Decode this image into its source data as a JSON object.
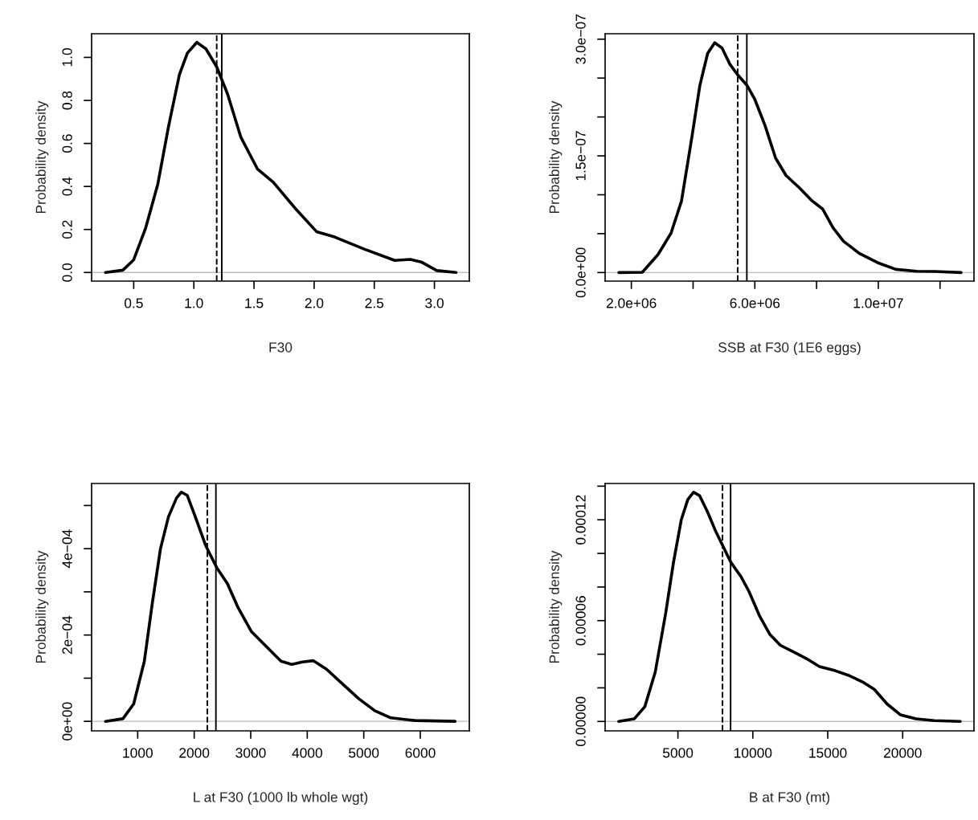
{
  "chart_data": [
    {
      "type": "line",
      "xlabel": "F30",
      "ylabel": "Probability density",
      "grid": false,
      "line_style": "solid",
      "x": [
        0.266,
        0.41,
        0.5,
        0.6,
        0.7,
        0.79,
        0.88,
        0.946,
        1.025,
        1.1,
        1.19,
        1.28,
        1.39,
        1.53,
        1.66,
        1.84,
        2.02,
        2.17,
        2.42,
        2.67,
        2.8,
        2.89,
        3.02,
        3.18
      ],
      "series": [
        {
          "color": "#000000",
          "values": [
            0,
            0.011,
            0.059,
            0.208,
            0.41,
            0.68,
            0.92,
            1.02,
            1.07,
            1.04,
            0.956,
            0.83,
            0.63,
            0.48,
            0.42,
            0.3,
            0.19,
            0.165,
            0.108,
            0.056,
            0.061,
            0.049,
            0.009,
            0
          ]
        }
      ],
      "xlim": [
        0.15,
        3.29
      ],
      "ylim": [
        -0.04,
        1.11
      ],
      "xticks": [
        {
          "value": 0.5,
          "label": "0.5"
        },
        {
          "value": 1.0,
          "label": "1.0"
        },
        {
          "value": 1.5,
          "label": "1.5"
        },
        {
          "value": 2.0,
          "label": "2.0"
        },
        {
          "value": 2.5,
          "label": "2.5"
        },
        {
          "value": 3.0,
          "label": "3.0"
        }
      ],
      "yticks": [
        {
          "value": 0,
          "label": "0.0"
        },
        {
          "value": 0.2,
          "label": "0.2"
        },
        {
          "value": 0.4,
          "label": "0.4"
        },
        {
          "value": 0.6,
          "label": "0.6"
        },
        {
          "value": 0.8,
          "label": "0.8"
        },
        {
          "value": 1.0,
          "label": "1.0"
        }
      ],
      "ref_lines": [
        {
          "axis": "y",
          "value": 0,
          "color": "#bebebe",
          "line_style": "solid"
        },
        {
          "axis": "x",
          "value": 1.19,
          "color": "#000000",
          "line_style": "dashed"
        },
        {
          "axis": "x",
          "value": 1.232,
          "color": "#000000",
          "line_style": "solid"
        }
      ]
    },
    {
      "type": "line",
      "xlabel": "SSB at F30 (1E6 eggs)",
      "ylabel": "Probability density",
      "grid": false,
      "line_style": "solid",
      "x": [
        1594000.0,
        2355000.0,
        2863000.0,
        3286000.0,
        3625000.0,
        3964000.0,
        4218000.0,
        4471000.0,
        4700000.0,
        4937000.0,
        5191000.0,
        5445000.0,
        5741000.0,
        5995000.0,
        6334000.0,
        6672000.0,
        7011000.0,
        7434000.0,
        7857000.0,
        8196000.0,
        8534000.0,
        8873000.0,
        9381000.0,
        9973000.0,
        10566000.0,
        11243000.0,
        11835000.0,
        12682000.0
      ],
      "series": [
        {
          "color": "#000000",
          "values": [
            0,
            4.1e-10,
            2.31e-08,
            5.07e-08,
            9.21e-08,
            1.748e-07,
            2.403e-07,
            2.817e-07,
            2.955e-07,
            2.886e-07,
            2.679e-07,
            2.541e-07,
            2.41e-07,
            2.231e-07,
            1.886e-07,
            1.472e-07,
            1.248e-07,
            1.093e-07,
            9.21e-08,
            8.17e-08,
            5.76e-08,
            4.03e-08,
            2.48e-08,
            1.28e-08,
            4.1e-09,
            1.7e-09,
            1.4e-09,
            0
          ]
        }
      ],
      "xlim": [
        1150000.0,
        13100000.0
      ],
      "ylim": [
        -1.1e-08,
        3.07e-07
      ],
      "xticks": [
        {
          "value": 2000000.0,
          "label": "2.0e+06"
        },
        {
          "value": 4000000.0,
          "label": null
        },
        {
          "value": 6000000.0,
          "label": "6.0e+06"
        },
        {
          "value": 8000000.0,
          "label": null
        },
        {
          "value": 10000000.0,
          "label": "1.0e+07"
        },
        {
          "value": 12000000.0,
          "label": null
        }
      ],
      "yticks": [
        {
          "value": 0,
          "label": "0.0e+00"
        },
        {
          "value": 5e-08,
          "label": null
        },
        {
          "value": 1e-07,
          "label": null
        },
        {
          "value": 1.5e-07,
          "label": "1.5e−07"
        },
        {
          "value": 2e-07,
          "label": null
        },
        {
          "value": 2.5e-07,
          "label": null
        },
        {
          "value": 3e-07,
          "label": "3.0e−07"
        }
      ],
      "ref_lines": [
        {
          "axis": "y",
          "value": 0,
          "color": "#bebebe",
          "line_style": "solid"
        },
        {
          "axis": "x",
          "value": 5445000.0,
          "color": "#000000",
          "line_style": "dashed"
        },
        {
          "axis": "x",
          "value": 5741000.0,
          "color": "#000000",
          "line_style": "solid"
        }
      ]
    },
    {
      "type": "line",
      "xlabel": "L at F30 (1000 lb whole wgt)",
      "ylabel": "Probability density",
      "grid": false,
      "line_style": "solid",
      "x": [
        431,
        739,
        929,
        1118,
        1261,
        1403,
        1545,
        1687,
        1772,
        1877,
        2019,
        2208,
        2398,
        2588,
        2777,
        3014,
        3298,
        3535,
        3725,
        3915,
        4104,
        4341,
        4625,
        4910,
        5194,
        5478,
        5905,
        6616
      ],
      "series": [
        {
          "color": "#000000",
          "values": [
            0,
            6.2e-06,
            4.03e-05,
            0.0001394,
            0.0002757,
            0.0003996,
            0.000474,
            0.0005173,
            0.000531,
            0.0005235,
            0.000474,
            0.0004058,
            0.0003563,
            0.0003191,
            0.0002633,
            0.0002076,
            0.0001704,
            0.0001394,
            0.000132,
            0.0001375,
            0.0001406,
            0.0001208,
            8.67e-05,
            5.27e-05,
            2.48e-05,
            8.1e-06,
            1.9e-06,
            0
          ]
        }
      ],
      "xlim": [
        185,
        6867
      ],
      "ylim": [
        -2.2e-05,
        0.000551
      ],
      "xticks": [
        1000,
        2000,
        3000,
        4000,
        5000,
        6000
      ],
      "yticks": [
        {
          "value": 0,
          "label": "0e+00"
        },
        {
          "value": 0.0001,
          "label": null
        },
        {
          "value": 0.0002,
          "label": "2e−04"
        },
        {
          "value": 0.0003,
          "label": null
        },
        {
          "value": 0.0004,
          "label": "4e−04"
        },
        {
          "value": 0.0005,
          "label": null
        }
      ],
      "ref_lines": [
        {
          "axis": "y",
          "value": 0,
          "color": "#bebebe",
          "line_style": "solid"
        },
        {
          "axis": "x",
          "value": 2232,
          "color": "#000000",
          "line_style": "dashed"
        },
        {
          "axis": "x",
          "value": 2384,
          "color": "#000000",
          "line_style": "solid"
        }
      ]
    },
    {
      "type": "line",
      "xlabel": "B at F30 (mt)",
      "ylabel": "Probability density",
      "grid": false,
      "line_style": "solid",
      "x": [
        1050,
        2094,
        2790,
        3486,
        4182,
        4704,
        5226,
        5661,
        6044,
        6444,
        6966,
        7488,
        8010,
        8532,
        9228,
        9750,
        10446,
        11142,
        11838,
        12708,
        13578,
        14448,
        15492,
        16362,
        17406,
        18102,
        18972,
        19842,
        20886,
        22104,
        23844
      ],
      "series": [
        {
          "color": "#000000",
          "values": [
            0,
            1.6e-06,
            8.8e-06,
            2.94e-05,
            6.44e-05,
            9.47e-05,
            0.0001201,
            0.0001321,
            0.0001364,
            0.0001344,
            0.0001249,
            0.0001138,
            0.0001042,
            9.47e-05,
            8.59e-05,
            7.72e-05,
            6.28e-05,
            5.17e-05,
            4.53e-05,
            4.14e-05,
            3.74e-05,
            3.26e-05,
            3.02e-05,
            2.75e-05,
            2.31e-05,
            1.91e-05,
            1.03e-05,
            4e-06,
            1.6e-06,
            5e-07,
            0
          ]
        }
      ],
      "xlim": [
        140,
        24760
      ],
      "ylim": [
        -5.6e-06,
        0.0001416
      ],
      "xticks": [
        5000,
        10000,
        15000,
        20000
      ],
      "yticks": [
        {
          "value": 0,
          "label": "0.00000"
        },
        {
          "value": 2e-05,
          "label": null
        },
        {
          "value": 4e-05,
          "label": null
        },
        {
          "value": 6e-05,
          "label": "0.00006"
        },
        {
          "value": 8e-05,
          "label": null
        },
        {
          "value": 0.0001,
          "label": null
        },
        {
          "value": 0.00012,
          "label": "0.00012"
        },
        {
          "value": 0.00014,
          "label": null
        }
      ],
      "ref_lines": [
        {
          "axis": "y",
          "value": 0,
          "color": "#bebebe",
          "line_style": "solid"
        },
        {
          "axis": "x",
          "value": 7975,
          "color": "#000000",
          "line_style": "dashed"
        },
        {
          "axis": "x",
          "value": 8515,
          "color": "#000000",
          "line_style": "solid"
        }
      ]
    }
  ]
}
